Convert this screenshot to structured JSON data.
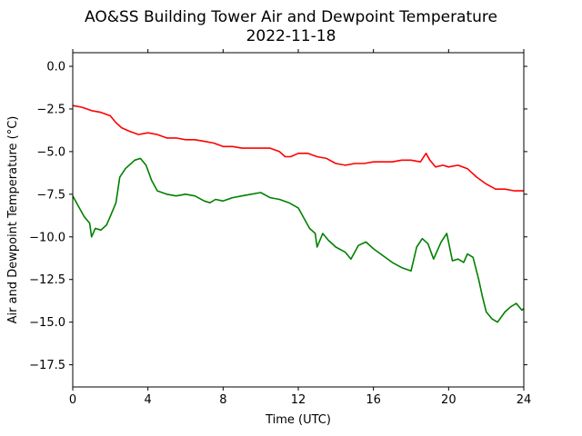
{
  "chart_data": {
    "type": "line",
    "title": "AO&SS Building Tower Air and Dewpoint Temperature",
    "subtitle": "2022-11-18",
    "xlabel": "Time (UTC)",
    "ylabel": "Air and Dewpoint Temperature (°C)",
    "xlim": [
      0,
      24
    ],
    "ylim": [
      -18.8,
      0.8
    ],
    "x_ticks": [
      0,
      4,
      8,
      12,
      16,
      20,
      24
    ],
    "x_tick_labels": [
      "0",
      "4",
      "8",
      "12",
      "16",
      "20",
      "24"
    ],
    "y_ticks": [
      0.0,
      -2.5,
      -5.0,
      -7.5,
      -10.0,
      -12.5,
      -15.0,
      -17.5
    ],
    "y_tick_labels": [
      "0.0",
      "−2.5",
      "−5.0",
      "−7.5",
      "−10.0",
      "−12.5",
      "−15.0",
      "−17.5"
    ],
    "grid": false,
    "legend": "none",
    "series": [
      {
        "color": "#ff0000",
        "x": [
          0,
          0.5,
          1,
          1.5,
          2,
          2.3,
          2.6,
          3,
          3.5,
          4,
          4.5,
          5,
          5.5,
          6,
          6.5,
          7,
          7.5,
          8,
          8.5,
          9,
          9.5,
          10,
          10.5,
          11,
          11.3,
          11.6,
          12,
          12.5,
          13,
          13.5,
          14,
          14.5,
          15,
          15.5,
          16,
          16.5,
          17,
          17.5,
          18,
          18.5,
          18.8,
          19,
          19.3,
          19.7,
          20,
          20.5,
          21,
          21.5,
          22,
          22.5,
          23,
          23.5,
          24
        ],
        "y": [
          -2.3,
          -2.4,
          -2.6,
          -2.7,
          -2.9,
          -3.3,
          -3.6,
          -3.8,
          -4.0,
          -3.9,
          -4.0,
          -4.2,
          -4.2,
          -4.3,
          -4.3,
          -4.4,
          -4.5,
          -4.7,
          -4.7,
          -4.8,
          -4.8,
          -4.8,
          -4.8,
          -5.0,
          -5.3,
          -5.3,
          -5.1,
          -5.1,
          -5.3,
          -5.4,
          -5.7,
          -5.8,
          -5.7,
          -5.7,
          -5.6,
          -5.6,
          -5.6,
          -5.5,
          -5.5,
          -5.6,
          -5.1,
          -5.5,
          -5.9,
          -5.8,
          -5.9,
          -5.8,
          -6.0,
          -6.5,
          -6.9,
          -7.2,
          -7.2,
          -7.3,
          -7.3
        ]
      },
      {
        "color": "#008000",
        "x": [
          0,
          0.3,
          0.6,
          0.9,
          1.0,
          1.2,
          1.5,
          1.8,
          2.0,
          2.3,
          2.5,
          2.8,
          3.0,
          3.3,
          3.6,
          3.9,
          4.2,
          4.5,
          5.0,
          5.5,
          6.0,
          6.5,
          7.0,
          7.3,
          7.6,
          8.0,
          8.5,
          9.0,
          9.5,
          10.0,
          10.5,
          11.0,
          11.5,
          12.0,
          12.3,
          12.6,
          12.9,
          13.0,
          13.3,
          13.6,
          14.0,
          14.5,
          14.8,
          15.2,
          15.6,
          16.0,
          16.5,
          17.0,
          17.5,
          18.0,
          18.3,
          18.6,
          18.9,
          19.2,
          19.6,
          19.9,
          20.2,
          20.5,
          20.8,
          21.0,
          21.3,
          21.6,
          21.8,
          22.0,
          22.3,
          22.6,
          23.0,
          23.3,
          23.6,
          23.9,
          24.0
        ],
        "y": [
          -7.6,
          -8.2,
          -8.8,
          -9.2,
          -10.0,
          -9.5,
          -9.6,
          -9.3,
          -8.8,
          -8.0,
          -6.5,
          -6.0,
          -5.8,
          -5.5,
          -5.4,
          -5.8,
          -6.7,
          -7.3,
          -7.5,
          -7.6,
          -7.5,
          -7.6,
          -7.9,
          -8.0,
          -7.8,
          -7.9,
          -7.7,
          -7.6,
          -7.5,
          -7.4,
          -7.7,
          -7.8,
          -8.0,
          -8.3,
          -8.9,
          -9.5,
          -9.8,
          -10.6,
          -9.8,
          -10.2,
          -10.6,
          -10.9,
          -11.3,
          -10.5,
          -10.3,
          -10.7,
          -11.1,
          -11.5,
          -11.8,
          -12.0,
          -10.6,
          -10.1,
          -10.4,
          -11.3,
          -10.3,
          -9.8,
          -11.4,
          -11.3,
          -11.5,
          -11.0,
          -11.2,
          -12.5,
          -13.5,
          -14.4,
          -14.8,
          -15.0,
          -14.4,
          -14.1,
          -13.9,
          -14.3,
          -14.2
        ]
      }
    ]
  }
}
